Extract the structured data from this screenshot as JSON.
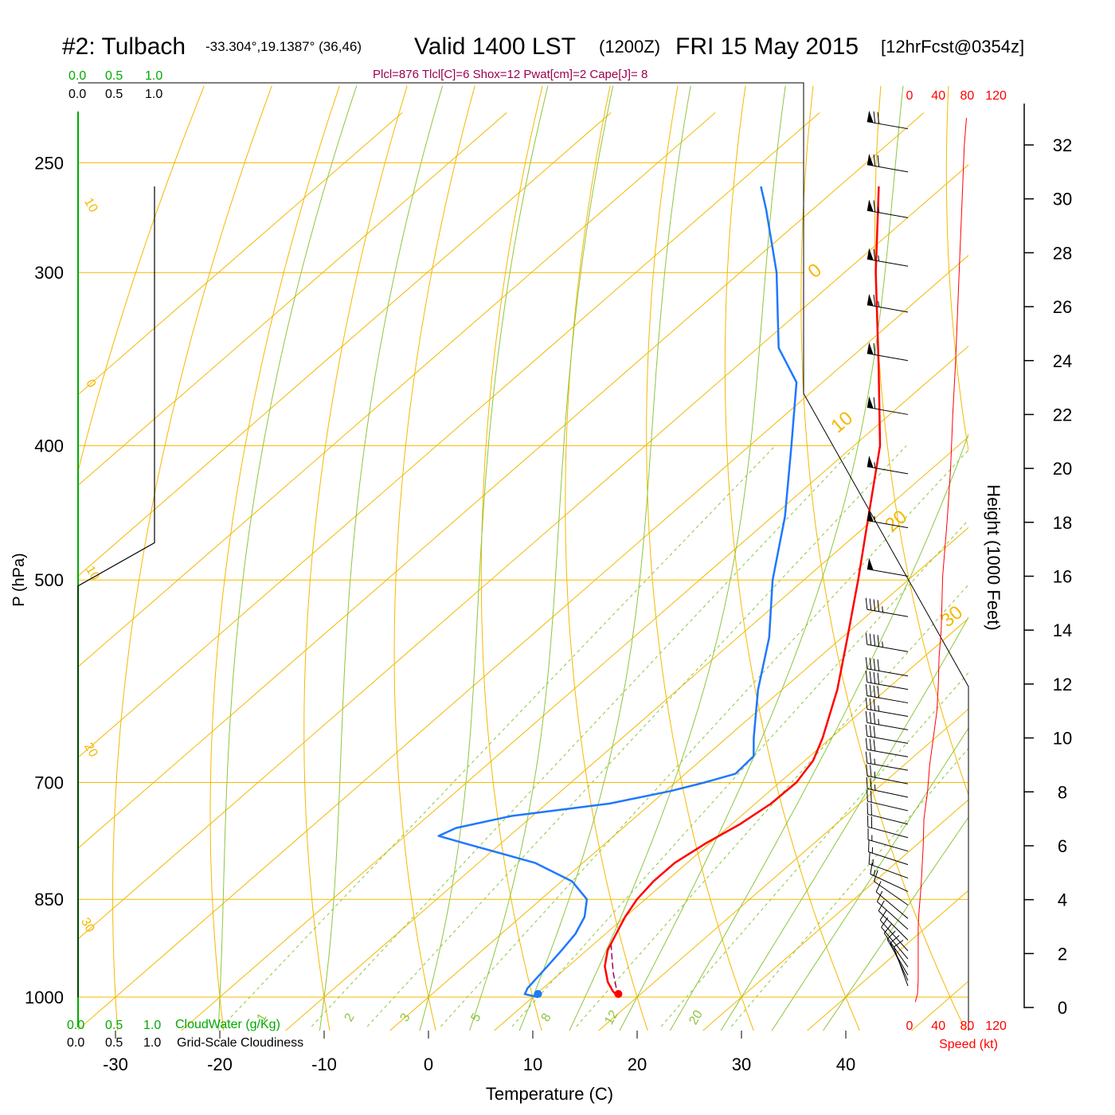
{
  "header": {
    "title_station": "#2: Tulbach",
    "title_coords": "-33.304°,19.1387° (36,46)",
    "title_valid": "Valid 1400 LST",
    "title_zulu": "(1200Z)",
    "title_date": "FRI 15 May 2015",
    "title_fcst": "[12hrFcst@0354z]",
    "params": "Plcl=876 Tlcl[C]=6 Shox=12 Pwat[cm]=2 Cape[J]= 8"
  },
  "cloud_scale": {
    "water_ticks": [
      "0.0",
      "0.5",
      "1.0"
    ],
    "cloud_ticks": [
      "0.0",
      "0.5",
      "1.0"
    ],
    "water_label": "CloudWater (g/Kg)",
    "cloud_label": "Grid-Scale Cloudiness"
  },
  "chart_data": {
    "type": "line",
    "subtype": "skew-T log-p sounding",
    "xlabel": "Temperature (C)",
    "ylabel": "P (hPa)",
    "y2label": "Height (1000 Feet)",
    "speed_label": "Speed (kt)",
    "x_ticks": [
      -30,
      -20,
      -10,
      0,
      10,
      20,
      30,
      40
    ],
    "p_ticks": [
      250,
      300,
      400,
      500,
      700,
      850,
      1000
    ],
    "height_ticks": [
      0,
      2,
      4,
      6,
      8,
      10,
      12,
      14,
      16,
      18,
      20,
      22,
      24,
      26,
      28,
      30,
      32
    ],
    "speed_ticks": [
      0,
      40,
      80,
      120
    ],
    "dry_adiabat_labels": [
      "-10",
      "0",
      "10",
      "20",
      "30"
    ],
    "isotherm_labels": [
      "0",
      "10",
      "20",
      "30"
    ],
    "mixing_ratio_labels": [
      "1",
      "2",
      "3",
      "5",
      "8",
      "12",
      "20"
    ],
    "temperature": {
      "name": "Temperature",
      "color": "#ff0000",
      "points": [
        [
          1000,
          18.2
        ],
        [
          990,
          17
        ],
        [
          975,
          15.5
        ],
        [
          950,
          13.5
        ],
        [
          925,
          12
        ],
        [
          900,
          11
        ],
        [
          875,
          10
        ],
        [
          850,
          9.2
        ],
        [
          825,
          8.8
        ],
        [
          800,
          8.8
        ],
        [
          775,
          9.6
        ],
        [
          750,
          10.8
        ],
        [
          725,
          11.5
        ],
        [
          700,
          11.6
        ],
        [
          675,
          10.8
        ],
        [
          650,
          9.2
        ],
        [
          600,
          5.3
        ],
        [
          550,
          0.5
        ],
        [
          500,
          -4.8
        ],
        [
          450,
          -10.8
        ],
        [
          400,
          -17.5
        ],
        [
          350,
          -26.5
        ],
        [
          300,
          -37
        ],
        [
          260,
          -46.2
        ]
      ]
    },
    "dewpoint": {
      "name": "Dew point",
      "color": "#1e78ff",
      "points": [
        [
          1000,
          10.5
        ],
        [
          995,
          8.9
        ],
        [
          985,
          8.5
        ],
        [
          950,
          8.0
        ],
        [
          925,
          7.6
        ],
        [
          900,
          7.1
        ],
        [
          875,
          6.1
        ],
        [
          850,
          4.4
        ],
        [
          825,
          1.0
        ],
        [
          800,
          -4.6
        ],
        [
          775,
          -13.3
        ],
        [
          765,
          -16.8
        ],
        [
          755,
          -16.0
        ],
        [
          740,
          -12
        ],
        [
          725,
          -4
        ],
        [
          710,
          0.5
        ],
        [
          700,
          2.8
        ],
        [
          690,
          4.8
        ],
        [
          670,
          4.6
        ],
        [
          650,
          2.6
        ],
        [
          600,
          -2.3
        ],
        [
          550,
          -7
        ],
        [
          500,
          -13
        ],
        [
          450,
          -18.8
        ],
        [
          400,
          -26
        ],
        [
          360,
          -32.5
        ],
        [
          340,
          -38.0
        ],
        [
          300,
          -46.5
        ],
        [
          270,
          -54.5
        ],
        [
          260,
          -57.5
        ]
      ]
    },
    "parcel": {
      "name": "Parcel",
      "color": "#a00060",
      "points": [
        [
          1000,
          18.2
        ],
        [
          980,
          16.6
        ],
        [
          960,
          15.0
        ],
        [
          940,
          13.5
        ],
        [
          915,
          11.6
        ]
      ]
    },
    "surface_temperature": 18.2,
    "surface_dewpoint": 10.5,
    "wind_speed_profile": [
      [
        0.2,
        8
      ],
      [
        0.5,
        11
      ],
      [
        1.0,
        12
      ],
      [
        2.0,
        12
      ],
      [
        3.0,
        12
      ],
      [
        3.5,
        13
      ],
      [
        4.5,
        16
      ],
      [
        6,
        19
      ],
      [
        7,
        20
      ],
      [
        8,
        25
      ],
      [
        9,
        28
      ],
      [
        10,
        33
      ],
      [
        11,
        38
      ],
      [
        12,
        40
      ],
      [
        13,
        41
      ],
      [
        14,
        44
      ],
      [
        16,
        46
      ],
      [
        18,
        52
      ],
      [
        20,
        57
      ],
      [
        22,
        60
      ],
      [
        24,
        64
      ],
      [
        26,
        67
      ],
      [
        28,
        70
      ],
      [
        30,
        73
      ],
      [
        32,
        76
      ],
      [
        33,
        79
      ]
    ],
    "wind_barbs": [
      {
        "height": 0.8,
        "dir": 340,
        "speed": 10
      },
      {
        "height": 1.0,
        "dir": 335,
        "speed": 10
      },
      {
        "height": 1.2,
        "dir": 330,
        "speed": 10
      },
      {
        "height": 1.5,
        "dir": 325,
        "speed": 10
      },
      {
        "height": 1.8,
        "dir": 320,
        "speed": 10
      },
      {
        "height": 2.1,
        "dir": 318,
        "speed": 12
      },
      {
        "height": 2.5,
        "dir": 315,
        "speed": 12
      },
      {
        "height": 2.9,
        "dir": 312,
        "speed": 12
      },
      {
        "height": 3.3,
        "dir": 310,
        "speed": 12
      },
      {
        "height": 3.8,
        "dir": 305,
        "speed": 12
      },
      {
        "height": 4.3,
        "dir": 295,
        "speed": 15
      },
      {
        "height": 4.8,
        "dir": 290,
        "speed": 15
      },
      {
        "height": 5.3,
        "dir": 288,
        "speed": 17
      },
      {
        "height": 5.8,
        "dir": 286,
        "speed": 17
      },
      {
        "height": 6.3,
        "dir": 285,
        "speed": 20
      },
      {
        "height": 6.8,
        "dir": 284,
        "speed": 20
      },
      {
        "height": 7.3,
        "dir": 283,
        "speed": 22
      },
      {
        "height": 7.8,
        "dir": 282,
        "speed": 25
      },
      {
        "height": 8.3,
        "dir": 281,
        "speed": 25
      },
      {
        "height": 8.8,
        "dir": 280,
        "speed": 27
      },
      {
        "height": 9.3,
        "dir": 280,
        "speed": 30
      },
      {
        "height": 9.8,
        "dir": 280,
        "speed": 32
      },
      {
        "height": 10.3,
        "dir": 280,
        "speed": 35
      },
      {
        "height": 10.8,
        "dir": 280,
        "speed": 37
      },
      {
        "height": 11.3,
        "dir": 280,
        "speed": 40
      },
      {
        "height": 11.8,
        "dir": 280,
        "speed": 40
      },
      {
        "height": 12.3,
        "dir": 280,
        "speed": 42
      },
      {
        "height": 13.2,
        "dir": 280,
        "speed": 45
      },
      {
        "height": 14.5,
        "dir": 280,
        "speed": 45
      },
      {
        "height": 16.0,
        "dir": 280,
        "speed": 50
      },
      {
        "height": 17.8,
        "dir": 280,
        "speed": 55
      },
      {
        "height": 19.8,
        "dir": 280,
        "speed": 55
      },
      {
        "height": 22.0,
        "dir": 280,
        "speed": 60
      },
      {
        "height": 24.0,
        "dir": 280,
        "speed": 60
      },
      {
        "height": 25.8,
        "dir": 280,
        "speed": 65
      },
      {
        "height": 27.5,
        "dir": 280,
        "speed": 65
      },
      {
        "height": 29.3,
        "dir": 280,
        "speed": 65
      },
      {
        "height": 31.0,
        "dir": 280,
        "speed": 70
      },
      {
        "height": 32.6,
        "dir": 280,
        "speed": 70
      }
    ],
    "cloud_fraction_profile": [
      [
        1000,
        0
      ],
      [
        505,
        0
      ],
      [
        470,
        1.0
      ],
      [
        260,
        1.0
      ]
    ],
    "cloud_water_profile": [
      [
        1000,
        0
      ],
      [
        260,
        0
      ]
    ],
    "grid": true,
    "colors": {
      "isobar": "#f5b800",
      "isotherm": "#f5b800",
      "dry_adiabat": "#f5b800",
      "moist_adiabat": "#8cc63e",
      "mixing_ratio": "#8cc63e",
      "cloudwater": "#00aa00",
      "title_params": "#9b0050",
      "speed": "#ff0000"
    }
  }
}
